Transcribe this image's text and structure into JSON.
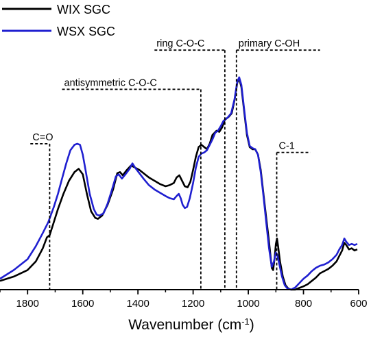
{
  "chart_data": {
    "type": "line",
    "title": "",
    "xlabel": "Wavenumber",
    "xlabel_unit_base": "cm",
    "xlabel_unit_exp": "-1",
    "ylabel": "",
    "xlim": [
      1900,
      600
    ],
    "ylim": [
      0,
      1
    ],
    "x_reversed": true,
    "x_ticks": [
      1800,
      1600,
      1400,
      1200,
      1000,
      800,
      600
    ],
    "grid": false,
    "legend_position": "top-left",
    "series": [
      {
        "name": "WIX SGC",
        "color": "#000000",
        "points": [
          [
            1900,
            0.04
          ],
          [
            1850,
            0.06
          ],
          [
            1800,
            0.09
          ],
          [
            1770,
            0.13
          ],
          [
            1745,
            0.19
          ],
          [
            1730,
            0.24
          ],
          [
            1720,
            0.25
          ],
          [
            1705,
            0.31
          ],
          [
            1690,
            0.37
          ],
          [
            1670,
            0.44
          ],
          [
            1650,
            0.5
          ],
          [
            1630,
            0.54
          ],
          [
            1615,
            0.555
          ],
          [
            1600,
            0.53
          ],
          [
            1585,
            0.44
          ],
          [
            1570,
            0.36
          ],
          [
            1555,
            0.33
          ],
          [
            1545,
            0.325
          ],
          [
            1530,
            0.34
          ],
          [
            1510,
            0.39
          ],
          [
            1490,
            0.46
          ],
          [
            1475,
            0.535
          ],
          [
            1465,
            0.54
          ],
          [
            1455,
            0.525
          ],
          [
            1440,
            0.55
          ],
          [
            1425,
            0.57
          ],
          [
            1410,
            0.56
          ],
          [
            1395,
            0.55
          ],
          [
            1380,
            0.535
          ],
          [
            1360,
            0.515
          ],
          [
            1340,
            0.5
          ],
          [
            1320,
            0.485
          ],
          [
            1300,
            0.475
          ],
          [
            1285,
            0.48
          ],
          [
            1270,
            0.49
          ],
          [
            1260,
            0.515
          ],
          [
            1250,
            0.525
          ],
          [
            1240,
            0.5
          ],
          [
            1230,
            0.475
          ],
          [
            1220,
            0.47
          ],
          [
            1210,
            0.495
          ],
          [
            1200,
            0.55
          ],
          [
            1190,
            0.61
          ],
          [
            1180,
            0.655
          ],
          [
            1170,
            0.665
          ],
          [
            1160,
            0.655
          ],
          [
            1150,
            0.645
          ],
          [
            1140,
            0.67
          ],
          [
            1130,
            0.71
          ],
          [
            1115,
            0.73
          ],
          [
            1105,
            0.725
          ],
          [
            1095,
            0.745
          ],
          [
            1085,
            0.78
          ],
          [
            1070,
            0.795
          ],
          [
            1060,
            0.81
          ],
          [
            1050,
            0.87
          ],
          [
            1040,
            0.95
          ],
          [
            1033,
            0.97
          ],
          [
            1025,
            0.93
          ],
          [
            1015,
            0.82
          ],
          [
            1005,
            0.71
          ],
          [
            995,
            0.655
          ],
          [
            985,
            0.645
          ],
          [
            975,
            0.645
          ],
          [
            965,
            0.62
          ],
          [
            955,
            0.55
          ],
          [
            945,
            0.44
          ],
          [
            935,
            0.33
          ],
          [
            925,
            0.22
          ],
          [
            915,
            0.1
          ],
          [
            910,
            0.09
          ],
          [
            905,
            0.14
          ],
          [
            900,
            0.21
          ],
          [
            896,
            0.235
          ],
          [
            892,
            0.2
          ],
          [
            885,
            0.13
          ],
          [
            875,
            0.06
          ],
          [
            865,
            0.02
          ],
          [
            855,
            0.005
          ],
          [
            845,
            0.0
          ],
          [
            830,
            0.0
          ],
          [
            815,
            0.008
          ],
          [
            800,
            0.015
          ],
          [
            785,
            0.025
          ],
          [
            770,
            0.04
          ],
          [
            755,
            0.055
          ],
          [
            740,
            0.075
          ],
          [
            725,
            0.085
          ],
          [
            710,
            0.095
          ],
          [
            695,
            0.11
          ],
          [
            680,
            0.13
          ],
          [
            670,
            0.155
          ],
          [
            660,
            0.18
          ],
          [
            652,
            0.215
          ],
          [
            645,
            0.205
          ],
          [
            635,
            0.185
          ],
          [
            625,
            0.19
          ],
          [
            615,
            0.18
          ],
          [
            605,
            0.185
          ]
        ]
      },
      {
        "name": "WSX SGC",
        "color": "#1f1fd0",
        "points": [
          [
            1900,
            0.05
          ],
          [
            1850,
            0.09
          ],
          [
            1800,
            0.14
          ],
          [
            1770,
            0.2
          ],
          [
            1745,
            0.26
          ],
          [
            1725,
            0.31
          ],
          [
            1705,
            0.38
          ],
          [
            1690,
            0.44
          ],
          [
            1675,
            0.51
          ],
          [
            1660,
            0.58
          ],
          [
            1645,
            0.64
          ],
          [
            1630,
            0.665
          ],
          [
            1620,
            0.67
          ],
          [
            1610,
            0.665
          ],
          [
            1600,
            0.62
          ],
          [
            1590,
            0.55
          ],
          [
            1575,
            0.44
          ],
          [
            1560,
            0.37
          ],
          [
            1550,
            0.345
          ],
          [
            1540,
            0.34
          ],
          [
            1525,
            0.35
          ],
          [
            1510,
            0.395
          ],
          [
            1495,
            0.455
          ],
          [
            1480,
            0.52
          ],
          [
            1470,
            0.53
          ],
          [
            1458,
            0.51
          ],
          [
            1445,
            0.53
          ],
          [
            1430,
            0.555
          ],
          [
            1420,
            0.58
          ],
          [
            1410,
            0.56
          ],
          [
            1395,
            0.535
          ],
          [
            1380,
            0.51
          ],
          [
            1360,
            0.48
          ],
          [
            1340,
            0.46
          ],
          [
            1320,
            0.445
          ],
          [
            1300,
            0.43
          ],
          [
            1285,
            0.42
          ],
          [
            1270,
            0.415
          ],
          [
            1260,
            0.43
          ],
          [
            1252,
            0.44
          ],
          [
            1245,
            0.42
          ],
          [
            1238,
            0.39
          ],
          [
            1230,
            0.375
          ],
          [
            1222,
            0.38
          ],
          [
            1212,
            0.42
          ],
          [
            1200,
            0.49
          ],
          [
            1190,
            0.56
          ],
          [
            1180,
            0.61
          ],
          [
            1170,
            0.625
          ],
          [
            1160,
            0.63
          ],
          [
            1150,
            0.64
          ],
          [
            1140,
            0.665
          ],
          [
            1130,
            0.69
          ],
          [
            1120,
            0.72
          ],
          [
            1110,
            0.73
          ],
          [
            1100,
            0.75
          ],
          [
            1090,
            0.775
          ],
          [
            1075,
            0.79
          ],
          [
            1062,
            0.81
          ],
          [
            1050,
            0.875
          ],
          [
            1040,
            0.955
          ],
          [
            1033,
            0.975
          ],
          [
            1025,
            0.94
          ],
          [
            1015,
            0.83
          ],
          [
            1005,
            0.72
          ],
          [
            995,
            0.66
          ],
          [
            985,
            0.65
          ],
          [
            975,
            0.645
          ],
          [
            965,
            0.62
          ],
          [
            955,
            0.54
          ],
          [
            945,
            0.43
          ],
          [
            935,
            0.31
          ],
          [
            925,
            0.19
          ],
          [
            915,
            0.105
          ],
          [
            907,
            0.13
          ],
          [
            900,
            0.17
          ],
          [
            895,
            0.16
          ],
          [
            888,
            0.12
          ],
          [
            878,
            0.06
          ],
          [
            868,
            0.02
          ],
          [
            858,
            0.005
          ],
          [
            845,
            0.0
          ],
          [
            830,
            0.01
          ],
          [
            815,
            0.03
          ],
          [
            800,
            0.05
          ],
          [
            785,
            0.065
          ],
          [
            770,
            0.085
          ],
          [
            755,
            0.1
          ],
          [
            740,
            0.11
          ],
          [
            725,
            0.115
          ],
          [
            710,
            0.125
          ],
          [
            695,
            0.14
          ],
          [
            680,
            0.16
          ],
          [
            670,
            0.185
          ],
          [
            660,
            0.205
          ],
          [
            652,
            0.235
          ],
          [
            645,
            0.22
          ],
          [
            635,
            0.205
          ],
          [
            625,
            0.21
          ],
          [
            615,
            0.205
          ],
          [
            605,
            0.21
          ]
        ]
      }
    ],
    "annotations": [
      {
        "label": "C=O",
        "x": 1720,
        "label_start": 1790,
        "level": 0.67
      },
      {
        "label": "antisymmetric C-O-C",
        "x": 1172,
        "label_start": 1675,
        "level": 0.92
      },
      {
        "label": "ring C-O-C",
        "x": 1085,
        "label_start": 1340,
        "level": 1.1
      },
      {
        "label": "primary C-OH",
        "x": 1043,
        "label_start": 1043,
        "label_end": 740,
        "level": 1.1
      },
      {
        "label": "C-1",
        "x": 897,
        "label_start": 897,
        "label_end": 775,
        "level": 0.63
      }
    ]
  }
}
